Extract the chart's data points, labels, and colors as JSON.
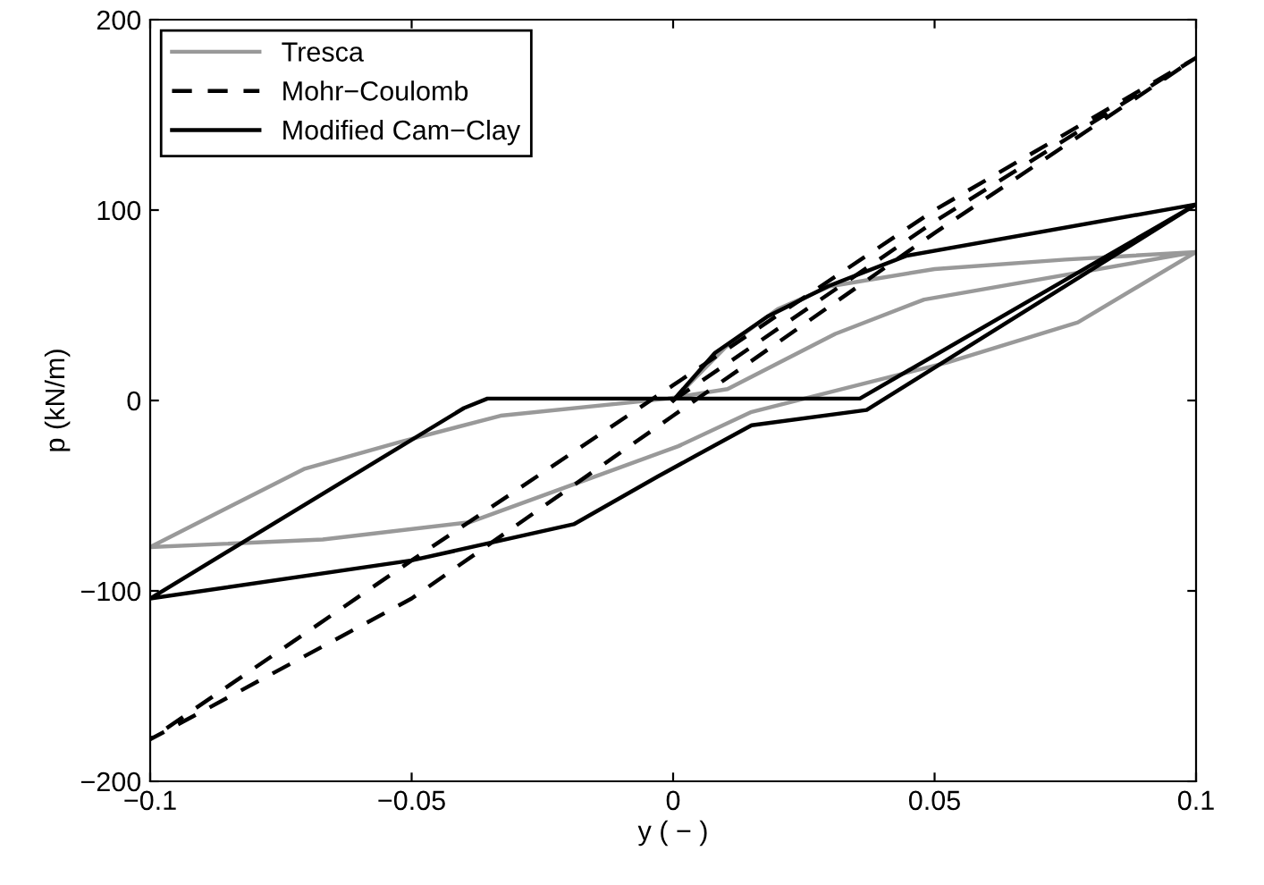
{
  "chart_data": {
    "type": "line",
    "xlabel": "y ( − )",
    "ylabel": "p (kN/m)",
    "xlim": [
      -0.1,
      0.1
    ],
    "ylim": [
      -200,
      200
    ],
    "xticks": [
      {
        "value": -0.1,
        "label": "−0.1"
      },
      {
        "value": -0.05,
        "label": "−0.05"
      },
      0,
      {
        "value": 0.05,
        "label": "0.05"
      },
      {
        "value": 0.1,
        "label": "0.1"
      }
    ],
    "yticks": [
      {
        "value": -200,
        "label": "−200"
      },
      {
        "value": -100,
        "label": "−100"
      },
      0,
      100,
      200
    ],
    "grid": false,
    "legend": "top left",
    "marker": "none",
    "series": [
      {
        "name": "Tresca",
        "color": "#999999",
        "line_style": "solid",
        "x": [
          0,
          0.01,
          0.02,
          0.03,
          0.05,
          0.075,
          0.1,
          0.0774,
          0.0525,
          0.015,
          0.001,
          -0.016,
          -0.039,
          -0.067,
          -0.1,
          -0.0706,
          -0.0525,
          -0.033,
          -0.001,
          0.0104,
          0.031,
          0.048,
          0.1
        ],
        "values": [
          0,
          28,
          48,
          60,
          69,
          74,
          78,
          41,
          20,
          -6,
          -24,
          -41,
          -64,
          -73,
          -77,
          -36,
          -22,
          -8,
          1,
          6,
          35,
          53,
          78
        ]
      },
      {
        "name": "Mohr−Coulomb",
        "color": "#000000",
        "line_style": "dashed",
        "x": [
          0,
          0.05,
          0.1,
          0.05,
          0,
          -0.05,
          -0.1,
          -0.05,
          0,
          0.05,
          0.1
        ],
        "values": [
          0,
          94,
          180,
          88,
          -8,
          -104,
          -178,
          -84,
          8,
          100,
          180
        ]
      },
      {
        "name": "Modified Cam−Clay",
        "color": "#000000",
        "line_style": "solid",
        "x": [
          0,
          0.008,
          0.018,
          0.0296,
          0.0446,
          0.1,
          0.037,
          0.015,
          -0.003,
          -0.019,
          -0.05,
          -0.1,
          -0.04,
          -0.0355,
          0.0357,
          0.1
        ],
        "values": [
          0,
          25,
          44,
          60,
          76,
          103,
          -5,
          -13,
          -40,
          -65,
          -84,
          -104,
          -4,
          1,
          1,
          103
        ]
      }
    ]
  }
}
